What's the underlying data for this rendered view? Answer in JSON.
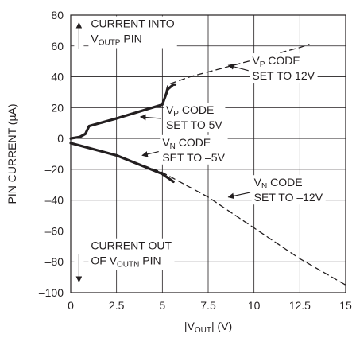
{
  "chart_data": {
    "type": "line",
    "title": "",
    "xlabel": "|V",
    "xlabel_sub": "OUT",
    "xlabel_tail": "| (V)",
    "ylabel": "PIN CURRENT (µA)",
    "xlim": [
      0,
      15
    ],
    "ylim": [
      -100,
      80
    ],
    "x_ticks": [
      0,
      2.5,
      5,
      7.5,
      10,
      12.5,
      15
    ],
    "x_tick_labels": [
      "0",
      "2.5",
      "5",
      "7.5",
      "10",
      "12.5",
      "15"
    ],
    "y_ticks": [
      -100,
      -80,
      -60,
      -40,
      -20,
      0,
      20,
      40,
      60,
      80
    ],
    "y_tick_labels": [
      "–100",
      "–80",
      "–60",
      "–40",
      "–20",
      "0",
      "20",
      "40",
      "60",
      "80"
    ],
    "grid": true,
    "series": [
      {
        "name": "VP CODE SET TO 12V",
        "style": "dashed",
        "x": [
          0,
          0.5,
          0.8,
          1.0,
          2.5,
          5.0,
          5.3,
          6.5,
          10.0,
          12.5,
          13.0
        ],
        "y": [
          0,
          1,
          3,
          8,
          13,
          22,
          35,
          40,
          51,
          59,
          61
        ]
      },
      {
        "name": "VP CODE SET TO 5V",
        "style": "solid",
        "x": [
          0,
          0.5,
          0.8,
          1.0,
          2.5,
          5.0,
          5.3,
          5.6,
          5.7
        ],
        "y": [
          0,
          1,
          3,
          8,
          13,
          22,
          32,
          35,
          35
        ]
      },
      {
        "name": "VN CODE SET TO –12V",
        "style": "dashed",
        "x": [
          0,
          2.5,
          5.0,
          7.5,
          10.0,
          12.5,
          15.0
        ],
        "y": [
          -3,
          -11,
          -22,
          -38,
          -58,
          -78,
          -95
        ]
      },
      {
        "name": "VN CODE SET TO –5V",
        "style": "solid",
        "x": [
          0,
          2.5,
          5.0,
          5.6
        ],
        "y": [
          -3,
          -11,
          -23,
          -28
        ]
      }
    ],
    "annotations": [
      {
        "id": "vp12",
        "parts": [
          [
            "V",
            ""
          ],
          [
            "P",
            "sub"
          ],
          [
            " CODE",
            ""
          ]
        ],
        "line2": "SET TO 12V",
        "text_x": 9.9,
        "text_y": 48,
        "arrow_from": [
          9.7,
          44
        ],
        "arrow_to": [
          8.6,
          47.5
        ]
      },
      {
        "id": "vp5",
        "parts": [
          [
            "V",
            ""
          ],
          [
            "P",
            "sub"
          ],
          [
            " CODE",
            ""
          ]
        ],
        "line2": "SET TO 5V",
        "text_x": 5.2,
        "text_y": 16,
        "arrow_from": [
          4.9,
          13
        ],
        "arrow_to": [
          3.8,
          14
        ]
      },
      {
        "id": "vn5",
        "parts": [
          [
            "V",
            ""
          ],
          [
            "N",
            "sub"
          ],
          [
            " CODE",
            ""
          ]
        ],
        "line2": "SET TO –5V",
        "text_x": 5.0,
        "text_y": -5,
        "arrow_from": [
          4.8,
          -8.5
        ],
        "arrow_to": [
          3.9,
          -11
        ]
      },
      {
        "id": "vn12",
        "parts": [
          [
            "V",
            ""
          ],
          [
            "N",
            "sub"
          ],
          [
            " CODE",
            ""
          ]
        ],
        "line2": "SET TO –12V",
        "text_x": 10.0,
        "text_y": -31,
        "arrow_from": [
          9.8,
          -35
        ],
        "arrow_to": [
          8.6,
          -38
        ]
      },
      {
        "id": "into",
        "parts": [
          [
            "CURRENT INTO",
            ""
          ]
        ],
        "line2_parts": [
          [
            "V",
            ""
          ],
          [
            "OUTP",
            "sub"
          ],
          [
            " PIN",
            ""
          ]
        ],
        "text_x": 1.1,
        "text_y": 72,
        "vertical_arrow": "up",
        "arrow_x": 0.45,
        "arrow_y": [
          58,
          75
        ]
      },
      {
        "id": "out",
        "parts": [
          [
            "CURRENT OUT",
            ""
          ]
        ],
        "line2_parts": [
          [
            "OF V",
            ""
          ],
          [
            "OUTN",
            "sub"
          ],
          [
            " PIN",
            ""
          ]
        ],
        "text_x": 1.1,
        "text_y": -72,
        "vertical_arrow": "down",
        "arrow_x": 0.45,
        "arrow_y": [
          -75,
          -93
        ]
      }
    ]
  }
}
